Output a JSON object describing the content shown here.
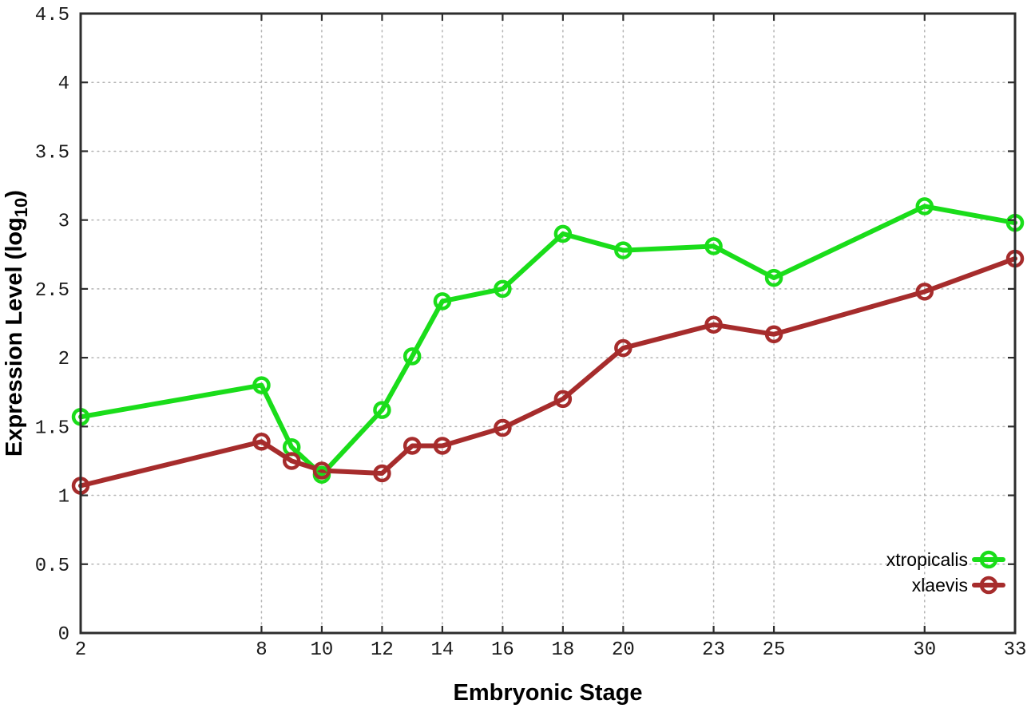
{
  "page": {
    "background": "#ffffff"
  },
  "chart_data": {
    "type": "line",
    "title": "",
    "xlabel": "Embryonic Stage",
    "ylabel": "Expression Level (log10)",
    "ylabel_parts": {
      "main": "Expression Level (log",
      "subscript": "10",
      "suffix": ")"
    },
    "xlim": [
      2,
      33
    ],
    "ylim": [
      0,
      4.5
    ],
    "xticks": [
      2,
      8,
      10,
      12,
      14,
      16,
      18,
      20,
      23,
      25,
      30,
      33
    ],
    "yticks": [
      0,
      0.5,
      1,
      1.5,
      2,
      2.5,
      3,
      3.5,
      4,
      4.5
    ],
    "grid": true,
    "legend_position": "bottom-right",
    "axis_color": "#2d2d2d",
    "grid_color": "#b4b4b4",
    "x": [
      2,
      8,
      9,
      10,
      12,
      13,
      14,
      16,
      18,
      20,
      23,
      25,
      30,
      33
    ],
    "series": [
      {
        "name": "xtropicalis",
        "color": "#1add1a",
        "values": [
          1.57,
          1.8,
          1.35,
          1.15,
          1.62,
          2.01,
          2.41,
          2.5,
          2.9,
          2.78,
          2.81,
          2.58,
          3.1,
          2.98
        ]
      },
      {
        "name": "xlaevis",
        "color": "#a62c2c",
        "values": [
          1.07,
          1.39,
          1.25,
          1.18,
          1.16,
          1.36,
          1.36,
          1.49,
          1.7,
          2.07,
          2.24,
          2.17,
          2.48,
          2.72
        ]
      }
    ]
  }
}
